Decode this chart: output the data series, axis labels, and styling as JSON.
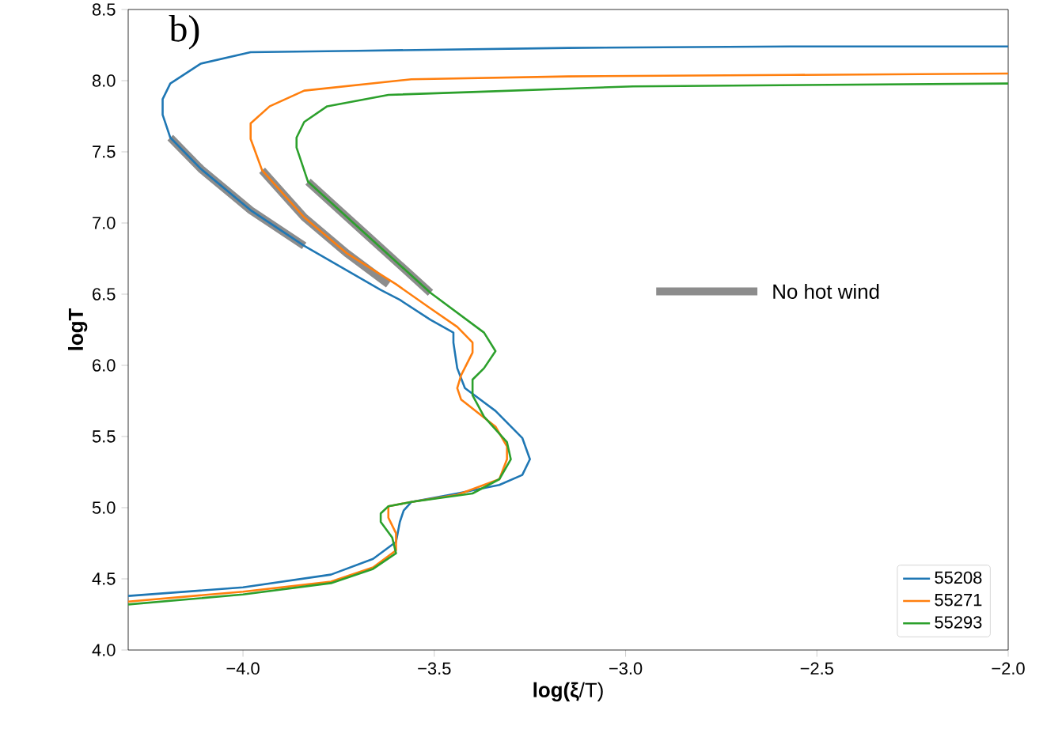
{
  "chart_data": {
    "type": "line",
    "xlabel": "**log(ξ**/T)",
    "ylabel": "**logT**",
    "annotations": [
      "b)"
    ],
    "xlim": [
      -4.3,
      -2.0
    ],
    "ylim": [
      4.0,
      8.5
    ],
    "xticks": [
      {
        "value": -4.0,
        "label": "−4.0"
      },
      {
        "value": -3.5,
        "label": "−3.5"
      },
      {
        "value": -3.0,
        "label": "−3.0"
      },
      {
        "value": -2.5,
        "label": "−2.5"
      },
      {
        "value": -2.0,
        "label": "−2.0"
      }
    ],
    "yticks": [
      {
        "value": 4.0,
        "label": "4.0"
      },
      {
        "value": 4.5,
        "label": "4.5"
      },
      {
        "value": 5.0,
        "label": "5.0"
      },
      {
        "value": 5.5,
        "label": "5.5"
      },
      {
        "value": 6.0,
        "label": "6.0"
      },
      {
        "value": 6.5,
        "label": "6.5"
      },
      {
        "value": 7.0,
        "label": "7.0"
      },
      {
        "value": 7.5,
        "label": "7.5"
      },
      {
        "value": 8.0,
        "label": "8.0"
      },
      {
        "value": 8.5,
        "label": "8.5"
      }
    ],
    "legend": "bottom right",
    "grid": false,
    "series": [
      {
        "name": "No hot wind",
        "color": "#8c8c8c",
        "x": [
          -4.19,
          -4.11,
          -3.98,
          -3.84,
          null,
          -3.95,
          -3.84,
          -3.73,
          -3.62,
          null,
          -3.83,
          -3.67,
          -3.51
        ],
        "values": [
          7.6,
          7.38,
          7.09,
          6.84,
          null,
          7.37,
          7.04,
          6.79,
          6.57,
          null,
          7.29,
          6.9,
          6.51
        ]
      },
      {
        "name": "55208",
        "color": "#1f77b4",
        "x": [
          -4.3,
          -4.0,
          -3.77,
          -3.66,
          -3.6,
          -3.59,
          -3.58,
          -3.56,
          -3.44,
          -3.33,
          -3.27,
          -3.25,
          -3.27,
          -3.34,
          -3.42,
          -3.44,
          -3.45,
          -3.45,
          -3.51,
          -3.59,
          -3.64,
          -3.84,
          -3.98,
          -4.11,
          -4.19,
          -4.21,
          -4.21,
          -4.19,
          -4.11,
          -3.98,
          -3.7,
          -3.15,
          -2.57,
          -2.0
        ],
        "values": [
          4.38,
          4.44,
          4.53,
          4.64,
          4.76,
          4.9,
          4.98,
          5.04,
          5.1,
          5.16,
          5.23,
          5.34,
          5.49,
          5.68,
          5.84,
          5.98,
          6.16,
          6.23,
          6.32,
          6.46,
          6.53,
          6.84,
          7.09,
          7.38,
          7.6,
          7.76,
          7.87,
          7.98,
          8.12,
          8.2,
          8.21,
          8.23,
          8.24,
          8.24
        ]
      },
      {
        "name": "55271",
        "color": "#ff7f0e",
        "x": [
          -4.3,
          -4.0,
          -3.77,
          -3.66,
          -3.6,
          -3.6,
          -3.62,
          -3.62,
          -3.56,
          -3.44,
          -3.33,
          -3.31,
          -3.31,
          -3.34,
          -3.43,
          -3.44,
          -3.43,
          -3.4,
          -3.4,
          -3.44,
          -3.51,
          -3.6,
          -3.73,
          -3.84,
          -3.95,
          -3.98,
          -3.98,
          -3.93,
          -3.84,
          -3.56,
          -3.15,
          -2.57,
          -2.0
        ],
        "values": [
          4.34,
          4.41,
          4.48,
          4.58,
          4.7,
          4.82,
          4.93,
          5.01,
          5.04,
          5.09,
          5.2,
          5.34,
          5.43,
          5.57,
          5.76,
          5.84,
          5.93,
          6.09,
          6.16,
          6.27,
          6.4,
          6.57,
          6.79,
          7.04,
          7.37,
          7.59,
          7.7,
          7.82,
          7.93,
          8.01,
          8.03,
          8.04,
          8.05
        ]
      },
      {
        "name": "55293",
        "color": "#2ca02c",
        "x": [
          -4.3,
          -4.0,
          -3.77,
          -3.66,
          -3.6,
          -3.61,
          -3.64,
          -3.64,
          -3.62,
          -3.56,
          -3.4,
          -3.33,
          -3.3,
          -3.31,
          -3.37,
          -3.4,
          -3.4,
          -3.37,
          -3.34,
          -3.37,
          -3.44,
          -3.51,
          -3.67,
          -3.83,
          -3.86,
          -3.86,
          -3.84,
          -3.78,
          -3.62,
          -3.4,
          -2.98,
          -2.0
        ],
        "values": [
          4.32,
          4.39,
          4.47,
          4.57,
          4.68,
          4.79,
          4.9,
          4.96,
          5.01,
          5.04,
          5.1,
          5.2,
          5.34,
          5.46,
          5.64,
          5.79,
          5.9,
          5.98,
          6.1,
          6.23,
          6.37,
          6.51,
          6.9,
          7.29,
          7.53,
          7.6,
          7.71,
          7.82,
          7.9,
          7.92,
          7.96,
          7.98
        ]
      }
    ]
  }
}
